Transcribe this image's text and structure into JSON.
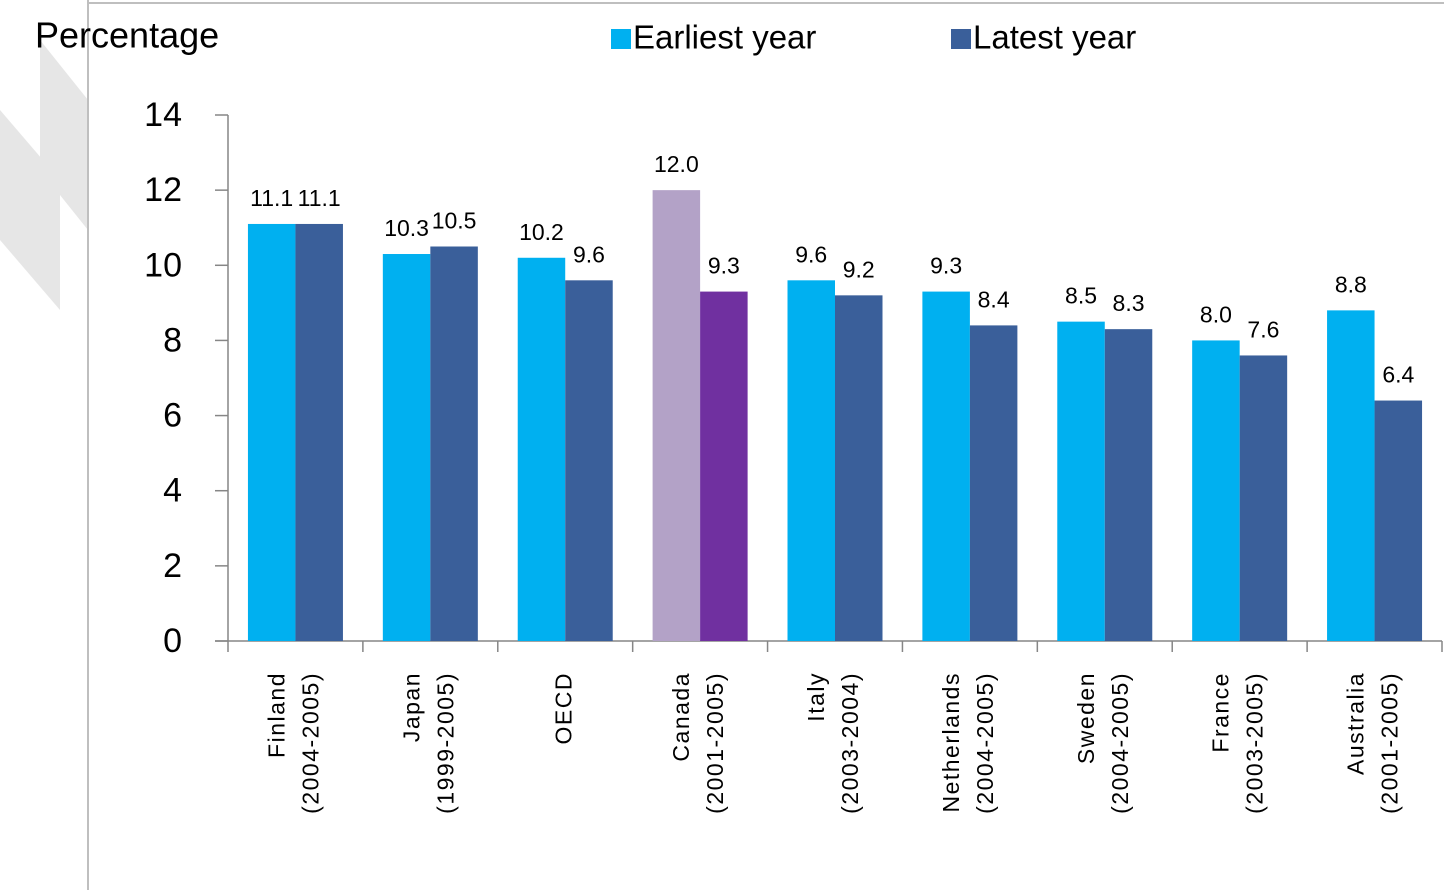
{
  "chart_data": {
    "type": "bar",
    "y_label": "Percentage",
    "categories": [
      [
        "Finland",
        "(2004-2005)"
      ],
      [
        "Japan",
        "(1999-2005)"
      ],
      [
        "OECD"
      ],
      [
        "Canada",
        "(2001-2005)"
      ],
      [
        "Italy",
        "(2003-2004)"
      ],
      [
        "Netherlands",
        "(2004-2005)"
      ],
      [
        "Sweden",
        "(2004-2005)"
      ],
      [
        "France",
        "(2003-2005)"
      ],
      [
        "Australia",
        "(2001-2005)"
      ]
    ],
    "series": [
      {
        "name": "Earliest year",
        "color": "#00b0f0",
        "colors": [
          "#00b0f0",
          "#00b0f0",
          "#00b0f0",
          "#b3a2c7",
          "#00b0f0",
          "#00b0f0",
          "#00b0f0",
          "#00b0f0",
          "#00b0f0"
        ],
        "values": [
          11.1,
          10.3,
          10.2,
          12.0,
          9.6,
          9.3,
          8.5,
          8.0,
          8.8
        ],
        "value_labels": [
          "11.1",
          "10.3",
          "10.2",
          "12.0",
          "9.6",
          "9.3",
          "8.5",
          "8.0",
          "8.8"
        ]
      },
      {
        "name": "Latest year",
        "color": "#3a5f9a",
        "colors": [
          "#3a5f9a",
          "#3a5f9a",
          "#3a5f9a",
          "#7030a0",
          "#3a5f9a",
          "#3a5f9a",
          "#3a5f9a",
          "#3a5f9a",
          "#3a5f9a"
        ],
        "values": [
          11.1,
          10.5,
          9.6,
          9.3,
          9.2,
          8.4,
          8.3,
          7.6,
          6.4
        ],
        "value_labels": [
          "11.1",
          "10.5",
          "9.6",
          "9.3",
          "9.2",
          "8.4",
          "8.3",
          "7.6",
          "6.4"
        ]
      }
    ],
    "ylim": [
      0,
      14
    ],
    "yticks": [
      0,
      2,
      4,
      6,
      8,
      10,
      12,
      14
    ],
    "grid": false
  }
}
